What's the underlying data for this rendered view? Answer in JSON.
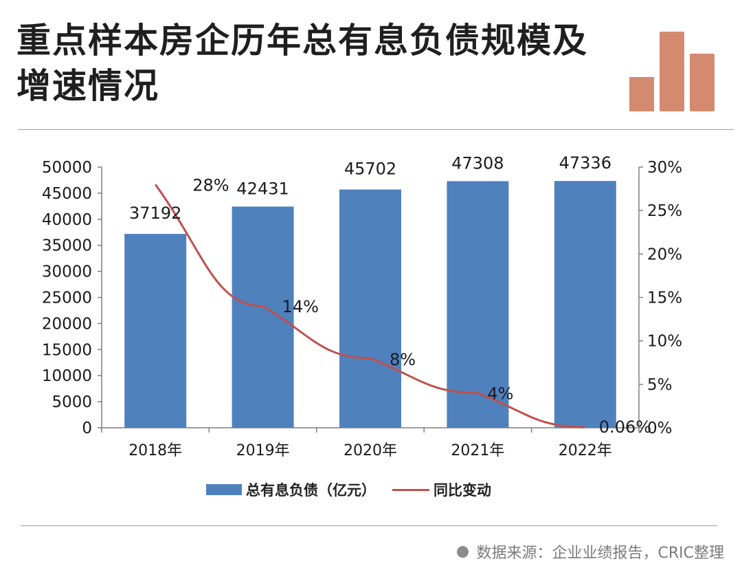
{
  "header": {
    "title": "重点样本房企历年总有息负债规模及增速情况",
    "logo_icon": "bar-chart-icon"
  },
  "colors": {
    "bar": "#4f81bd",
    "line": "#c0504d",
    "logo": "#d38a6f"
  },
  "chart_data": {
    "type": "bar",
    "categories": [
      "2018年",
      "2019年",
      "2020年",
      "2021年",
      "2022年"
    ],
    "series": [
      {
        "name": "总有息负债（亿元）",
        "type": "bar",
        "axis": "left",
        "values": [
          37192,
          42431,
          45702,
          47308,
          47336
        ],
        "labels": [
          "37192",
          "42431",
          "45702",
          "47308",
          "47336"
        ]
      },
      {
        "name": "同比变动",
        "type": "line",
        "axis": "right",
        "values": [
          28,
          14,
          8,
          4,
          0.06
        ],
        "labels": [
          "28%",
          "14%",
          "8%",
          "4%",
          "0.06%"
        ]
      }
    ],
    "y_left": {
      "min": 0,
      "max": 50000,
      "ticks": [
        "0",
        "5000",
        "10000",
        "15000",
        "20000",
        "25000",
        "30000",
        "35000",
        "40000",
        "45000",
        "50000"
      ]
    },
    "y_right": {
      "min": 0,
      "max": 30,
      "ticks": [
        "0%",
        "5%",
        "10%",
        "15%",
        "20%",
        "25%",
        "30%"
      ]
    },
    "legend": [
      "总有息负债（亿元）",
      "同比变动"
    ]
  },
  "footer": {
    "source": "数据来源：企业业绩报告，CRIC整理"
  }
}
